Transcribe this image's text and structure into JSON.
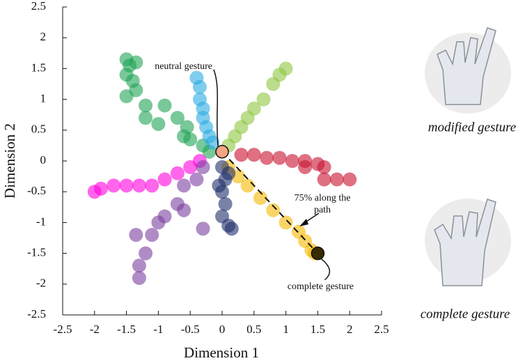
{
  "chart_data": {
    "type": "scatter",
    "xlabel": "Dimension 1",
    "ylabel": "Dimension 2",
    "xlim": [
      -2.5,
      2.5
    ],
    "ylim": [
      -2.5,
      2.5
    ],
    "xticks": [
      -2.5,
      -2,
      -1.5,
      -1,
      -0.5,
      0,
      0.5,
      1,
      1.5,
      2,
      2.5
    ],
    "yticks": [
      -2.5,
      -2,
      -1.5,
      -1,
      -0.5,
      0,
      0.5,
      1,
      1.5,
      2,
      2.5
    ],
    "series": [
      {
        "color": "#1fa455",
        "x": [
          -1.5,
          -1.45,
          -1.35,
          -1.5,
          -1.4,
          -1.35,
          -1.5,
          -1.2,
          -1.0,
          -0.9,
          -0.7,
          -0.6,
          -0.5,
          -0.3,
          -0.2,
          -0.55,
          -1.2
        ],
        "y": [
          1.65,
          1.55,
          1.6,
          1.4,
          1.3,
          1.15,
          1.05,
          0.9,
          0.6,
          0.9,
          0.7,
          0.4,
          0.35,
          0.25,
          0.15,
          0.55,
          0.7
        ]
      },
      {
        "color": "#29abe2",
        "x": [
          -0.4,
          -0.35,
          -0.35,
          -0.3,
          -0.3,
          -0.25,
          -0.2,
          -0.15
        ],
        "y": [
          1.35,
          1.2,
          1.0,
          0.85,
          0.7,
          0.55,
          0.4,
          0.3
        ]
      },
      {
        "color": "#8dc63f",
        "x": [
          1.0,
          0.9,
          0.8,
          0.65,
          0.5,
          0.4,
          0.3,
          0.2,
          0.1
        ],
        "y": [
          1.5,
          1.4,
          1.25,
          1.0,
          0.85,
          0.7,
          0.55,
          0.4,
          0.25
        ]
      },
      {
        "color": "#c8102e",
        "x": [
          0.3,
          0.5,
          0.7,
          0.9,
          1.1,
          1.3,
          1.5,
          1.6,
          1.8,
          2.0,
          1.6,
          1.3
        ],
        "y": [
          0.1,
          0.1,
          0.05,
          0.05,
          0.0,
          0.0,
          -0.05,
          -0.1,
          -0.3,
          -0.3,
          -0.3,
          -0.1
        ]
      },
      {
        "color": "#f5b800",
        "x": [
          0.1,
          0.25,
          0.4,
          0.6,
          0.8,
          1.0,
          1.2,
          1.3,
          1.4,
          1.45
        ],
        "y": [
          -0.1,
          -0.25,
          -0.4,
          -0.6,
          -0.8,
          -1.0,
          -1.15,
          -1.3,
          -1.45,
          -1.5
        ]
      },
      {
        "color": "#1f2f6b",
        "x": [
          0.0,
          0.05,
          0.0,
          0.05,
          0.0,
          0.1,
          0.15,
          -0.05,
          0.1
        ],
        "y": [
          -0.1,
          -0.3,
          -0.5,
          -0.7,
          -0.9,
          -1.05,
          -1.1,
          -0.4,
          -0.2
        ]
      },
      {
        "color": "#ff00dd",
        "x": [
          -2.0,
          -1.9,
          -1.7,
          -1.5,
          -1.3,
          -1.1,
          -0.9,
          -0.7,
          -0.5,
          -0.35
        ],
        "y": [
          -0.5,
          -0.45,
          -0.4,
          -0.4,
          -0.4,
          -0.4,
          -0.3,
          -0.2,
          -0.1,
          0.0
        ]
      },
      {
        "color": "#7b3fa0",
        "x": [
          -0.3,
          -0.4,
          -0.6,
          -0.7,
          -0.9,
          -1.0,
          -1.1,
          -1.2,
          -1.3,
          -1.3,
          -1.35,
          -0.3,
          -0.6
        ],
        "y": [
          -0.1,
          -0.3,
          -0.4,
          -0.7,
          -0.9,
          -1.0,
          -1.2,
          -1.5,
          -1.7,
          -1.9,
          -1.2,
          -1.1,
          -0.8
        ]
      }
    ],
    "highlights": [
      {
        "label": "neutral gesture",
        "x": 0,
        "y": 0.15,
        "color": "#f4a582"
      },
      {
        "label": "complete gesture",
        "x": 1.5,
        "y": -1.5,
        "color": "#3a2a00"
      }
    ],
    "path_note": "75% along the path"
  },
  "images": [
    {
      "caption": "modified gesture"
    },
    {
      "caption": "complete gesture"
    }
  ]
}
